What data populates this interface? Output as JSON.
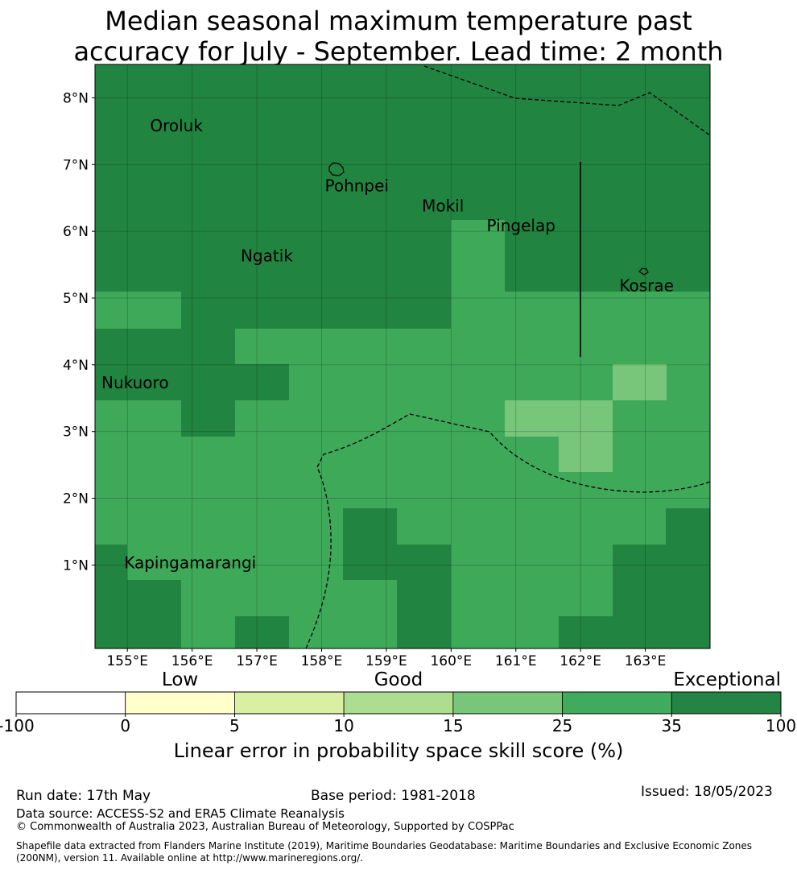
{
  "title_line1": "Median seasonal maximum temperature past",
  "title_line2": "accuracy for July - September. Lead time: 2 month",
  "map": {
    "lon_range": [
      154.5,
      164.0
    ],
    "lat_range": [
      -0.25,
      8.5
    ],
    "lat_ticks": [
      {
        "value": 8,
        "label": "8°N"
      },
      {
        "value": 7,
        "label": "7°N"
      },
      {
        "value": 6,
        "label": "6°N"
      },
      {
        "value": 5,
        "label": "5°N"
      },
      {
        "value": 4,
        "label": "4°N"
      },
      {
        "value": 3,
        "label": "3°N"
      },
      {
        "value": 2,
        "label": "2°N"
      },
      {
        "value": 1,
        "label": "1°N"
      }
    ],
    "lon_ticks": [
      {
        "value": 155,
        "label": "155°E"
      },
      {
        "value": 156,
        "label": "156°E"
      },
      {
        "value": 157,
        "label": "157°E"
      },
      {
        "value": 158,
        "label": "158°E"
      },
      {
        "value": 159,
        "label": "159°E"
      },
      {
        "value": 160,
        "label": "160°E"
      },
      {
        "value": 161,
        "label": "161°E"
      },
      {
        "value": 162,
        "label": "162°E"
      },
      {
        "value": 163,
        "label": "163°E"
      }
    ],
    "places": [
      {
        "name": "Oroluk",
        "lon": 155.35,
        "lat": 7.5
      },
      {
        "name": "Pohnpei",
        "lon": 158.05,
        "lat": 6.6
      },
      {
        "name": "Mokil",
        "lon": 159.55,
        "lat": 6.3
      },
      {
        "name": "Pingelap",
        "lon": 160.55,
        "lat": 6.0
      },
      {
        "name": "Ngatik",
        "lon": 156.75,
        "lat": 5.55
      },
      {
        "name": "Kosrae",
        "lon": 162.6,
        "lat": 5.1
      },
      {
        "name": "Nukuoro",
        "lon": 154.6,
        "lat": 3.65
      },
      {
        "name": "Kapingamarangi",
        "lon": 154.95,
        "lat": 0.95
      }
    ],
    "category_colors": {
      "exceptional": "#228441",
      "high": "#3fa95a",
      "medium": "#78c679"
    }
  },
  "colorbar": {
    "categories": [
      {
        "label": "Low",
        "center": 1.5
      },
      {
        "label": "Good",
        "center": 3.5
      },
      {
        "label": "Exceptional",
        "center": 6.0
      }
    ],
    "colors": [
      "#ffffff",
      "#ffffcc",
      "#d9f0a3",
      "#addd8e",
      "#78c679",
      "#41ab5d",
      "#238443"
    ],
    "ticks": [
      "-100",
      "0",
      "5",
      "10",
      "15",
      "25",
      "35",
      "100"
    ],
    "label": "Linear error in probability space skill score (%)"
  },
  "footer": {
    "run_date": "Run date: 17th May",
    "base_period": "Base period: 1981-2018",
    "issued": "Issued: 18/05/2023",
    "data_source": "Data source: ACCESS-S2 and ERA5 Climate Reanalysis",
    "copyright": "© Commonwealth of Australia 2023, Australian Bureau of Meteorology, Supported by COSPPac",
    "shapefile": "Shapefile data extracted from Flanders Marine Institute (2019), Maritime Boundaries Geodatabase: Maritime Boundaries and Exclusive Economic Zones (200NM), version 11. Available online at http://www.marineregions.org/."
  }
}
